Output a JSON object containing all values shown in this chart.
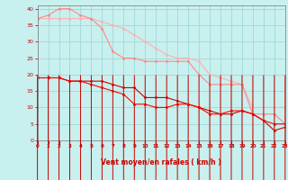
{
  "bg_color": "#c8f0ee",
  "grid_color": "#a0d8d8",
  "xlabel": "Vent moyen/en rafales ( km/h )",
  "xlim": [
    0,
    23
  ],
  "ylim": [
    0,
    41
  ],
  "yticks": [
    0,
    5,
    10,
    15,
    20,
    25,
    30,
    35,
    40
  ],
  "xticks": [
    0,
    1,
    2,
    3,
    4,
    5,
    6,
    7,
    8,
    9,
    10,
    11,
    12,
    13,
    14,
    15,
    16,
    17,
    18,
    19,
    20,
    21,
    22,
    23
  ],
  "line1_x": [
    0,
    1,
    2,
    3,
    4,
    5,
    6,
    7,
    8,
    9,
    10,
    11,
    12,
    13,
    14,
    15,
    16,
    17,
    18,
    19,
    20,
    21,
    22,
    23
  ],
  "line1_y": [
    37,
    37,
    37,
    37,
    37,
    37,
    36,
    35,
    34,
    32,
    30,
    28,
    26,
    25,
    25,
    24,
    20,
    19,
    18,
    17,
    10,
    10,
    10,
    10
  ],
  "line1_color": "#ffb0b0",
  "line2_x": [
    0,
    1,
    2,
    3,
    4,
    5,
    6,
    7,
    8,
    9,
    10,
    11,
    12,
    13,
    14,
    15,
    16,
    17,
    18,
    19,
    20,
    21,
    22,
    23
  ],
  "line2_y": [
    37,
    38,
    40,
    40,
    38,
    37,
    34,
    27,
    25,
    25,
    24,
    24,
    24,
    24,
    24,
    20,
    17,
    17,
    17,
    17,
    8,
    8,
    8,
    5
  ],
  "line2_color": "#ff8888",
  "line3_x": [
    0,
    1,
    2,
    3,
    4,
    5,
    6,
    7,
    8,
    9,
    10,
    11,
    12,
    13,
    14,
    15,
    16,
    17,
    18,
    19,
    20,
    21,
    22,
    23
  ],
  "line3_y": [
    19,
    19,
    19,
    18,
    18,
    18,
    18,
    17,
    16,
    16,
    13,
    13,
    13,
    12,
    11,
    10,
    9,
    8,
    8,
    9,
    8,
    6,
    3,
    4
  ],
  "line3_color": "#cc0000",
  "line4_x": [
    0,
    1,
    2,
    3,
    4,
    5,
    6,
    7,
    8,
    9,
    10,
    11,
    12,
    13,
    14,
    15,
    16,
    17,
    18,
    19,
    20,
    21,
    22,
    23
  ],
  "line4_y": [
    19,
    19,
    19,
    18,
    18,
    17,
    16,
    15,
    14,
    11,
    11,
    10,
    10,
    11,
    11,
    10,
    8,
    8,
    9,
    9,
    8,
    6,
    5,
    5
  ],
  "line4_color": "#ff0000",
  "marker": "D",
  "markersize": 1.5,
  "linewidth": 0.8,
  "xlabel_color": "#cc0000",
  "tick_color": "#cc0000",
  "axis_color": "#888888"
}
